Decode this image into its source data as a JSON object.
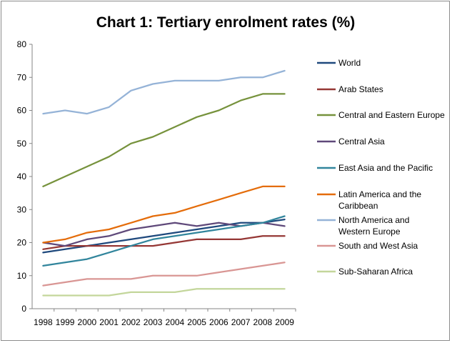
{
  "chart_data": {
    "type": "line",
    "title": "Chart 1: Tertiary enrolment rates (%)",
    "xlabel": "",
    "ylabel": "",
    "x": [
      "1998",
      "1999",
      "2000",
      "2001",
      "2002",
      "2003",
      "2004",
      "2005",
      "2006",
      "2007",
      "2008",
      "2009"
    ],
    "ylim": [
      0,
      80
    ],
    "yticks": [
      "0",
      "10",
      "20",
      "30",
      "40",
      "50",
      "60",
      "70",
      "80"
    ],
    "grid": false,
    "legend_position": "right",
    "series": [
      {
        "name": "World",
        "color": "#1F497D",
        "values": [
          17,
          18,
          19,
          20,
          21,
          22,
          23,
          24,
          25,
          26,
          26,
          27
        ]
      },
      {
        "name": "Arab States",
        "color": "#953735",
        "values": [
          18,
          19,
          19,
          19,
          19,
          19,
          20,
          21,
          21,
          21,
          22,
          22
        ]
      },
      {
        "name": "Central and Eastern Europe",
        "color": "#76923C",
        "values": [
          37,
          40,
          43,
          46,
          50,
          52,
          55,
          58,
          60,
          63,
          65,
          65
        ]
      },
      {
        "name": "Central Asia",
        "color": "#5F497A",
        "values": [
          20,
          19,
          21,
          22,
          24,
          25,
          26,
          25,
          26,
          25,
          26,
          25
        ]
      },
      {
        "name": "East Asia and the Pacific",
        "color": "#31859C",
        "values": [
          13,
          14,
          15,
          17,
          19,
          21,
          22,
          23,
          24,
          25,
          26,
          28
        ]
      },
      {
        "name": "Latin America and the Caribbean",
        "label_lines": [
          "Latin America and the",
          "Caribbean"
        ],
        "color": "#E46C0A",
        "values": [
          20,
          21,
          23,
          24,
          26,
          28,
          29,
          31,
          33,
          35,
          37,
          37
        ]
      },
      {
        "name": "North America and Western Europe",
        "label_lines": [
          "North America and",
          "Western Europe"
        ],
        "color": "#95B3D7",
        "values": [
          59,
          60,
          59,
          61,
          66,
          68,
          69,
          69,
          69,
          70,
          70,
          72
        ]
      },
      {
        "name": "South and West Asia",
        "color": "#D99694",
        "values": [
          7,
          8,
          9,
          9,
          9,
          10,
          10,
          10,
          11,
          12,
          13,
          14
        ]
      },
      {
        "name": "Sub-Saharan Africa",
        "color": "#C3D69B",
        "values": [
          4,
          4,
          4,
          4,
          5,
          5,
          5,
          6,
          6,
          6,
          6,
          6
        ]
      }
    ]
  }
}
